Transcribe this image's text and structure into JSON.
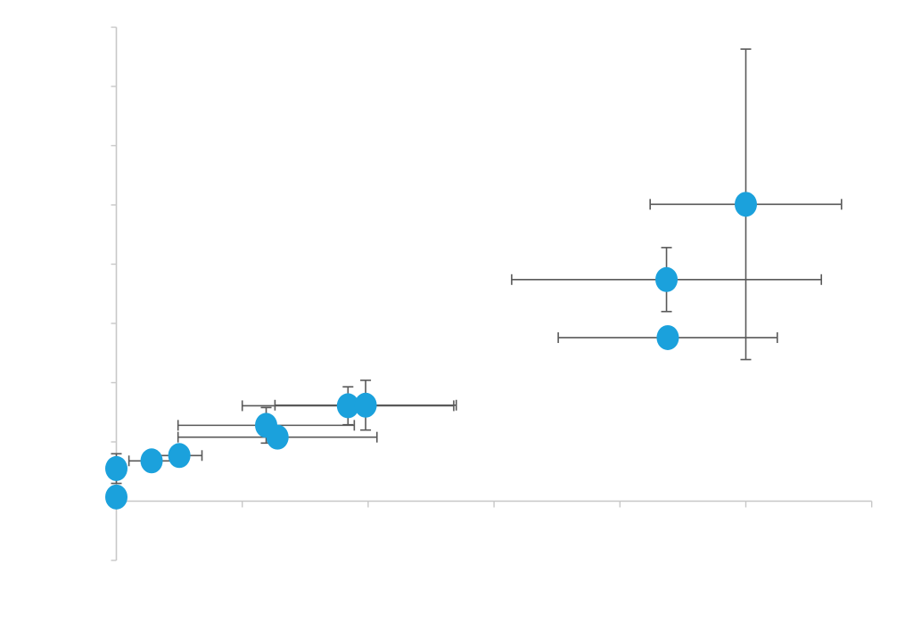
{
  "chart_data": {
    "type": "scatter",
    "title": "",
    "xlabel": "",
    "ylabel": "",
    "xlim": [
      0,
      6
    ],
    "ylim": [
      -1,
      8
    ],
    "x_ticks": [
      0,
      1,
      2,
      3,
      4,
      5,
      6
    ],
    "y_ticks": [
      -1,
      0,
      1,
      2,
      3,
      4,
      5,
      6,
      7,
      8
    ],
    "tick_labels_shown": false,
    "grid": false,
    "legend": "none",
    "marker_color": "#1ba1dc",
    "error_bar_color": "#595959",
    "axis_color": "#c8c8c8",
    "points": [
      {
        "x": 0.0,
        "y": 0.07,
        "x_err": 0.0,
        "y_err": 0.0
      },
      {
        "x": 0.0,
        "y": 0.55,
        "x_err": 0.02,
        "y_err": 0.25
      },
      {
        "x": 0.28,
        "y": 0.68,
        "x_err": 0.18,
        "y_err": 0.05
      },
      {
        "x": 0.5,
        "y": 0.77,
        "x_err": 0.18,
        "y_err": 0.05
      },
      {
        "x": 1.19,
        "y": 1.28,
        "x_err": 0.7,
        "y_err": 0.3
      },
      {
        "x": 1.28,
        "y": 1.08,
        "x_err": 0.79,
        "y_err": 0.1
      },
      {
        "x": 1.84,
        "y": 1.61,
        "x_err": 0.84,
        "y_err": 0.32
      },
      {
        "x": 1.98,
        "y": 1.62,
        "x_err": 0.72,
        "y_err": 0.42
      },
      {
        "x": 4.37,
        "y": 3.74,
        "x_err": 1.23,
        "y_err": 0.54
      },
      {
        "x": 4.38,
        "y": 2.76,
        "x_err": 0.87,
        "y_err": 0.0
      },
      {
        "x": 5.0,
        "y": 5.01,
        "x_err": 0.76,
        "y_err": 2.62
      }
    ]
  }
}
